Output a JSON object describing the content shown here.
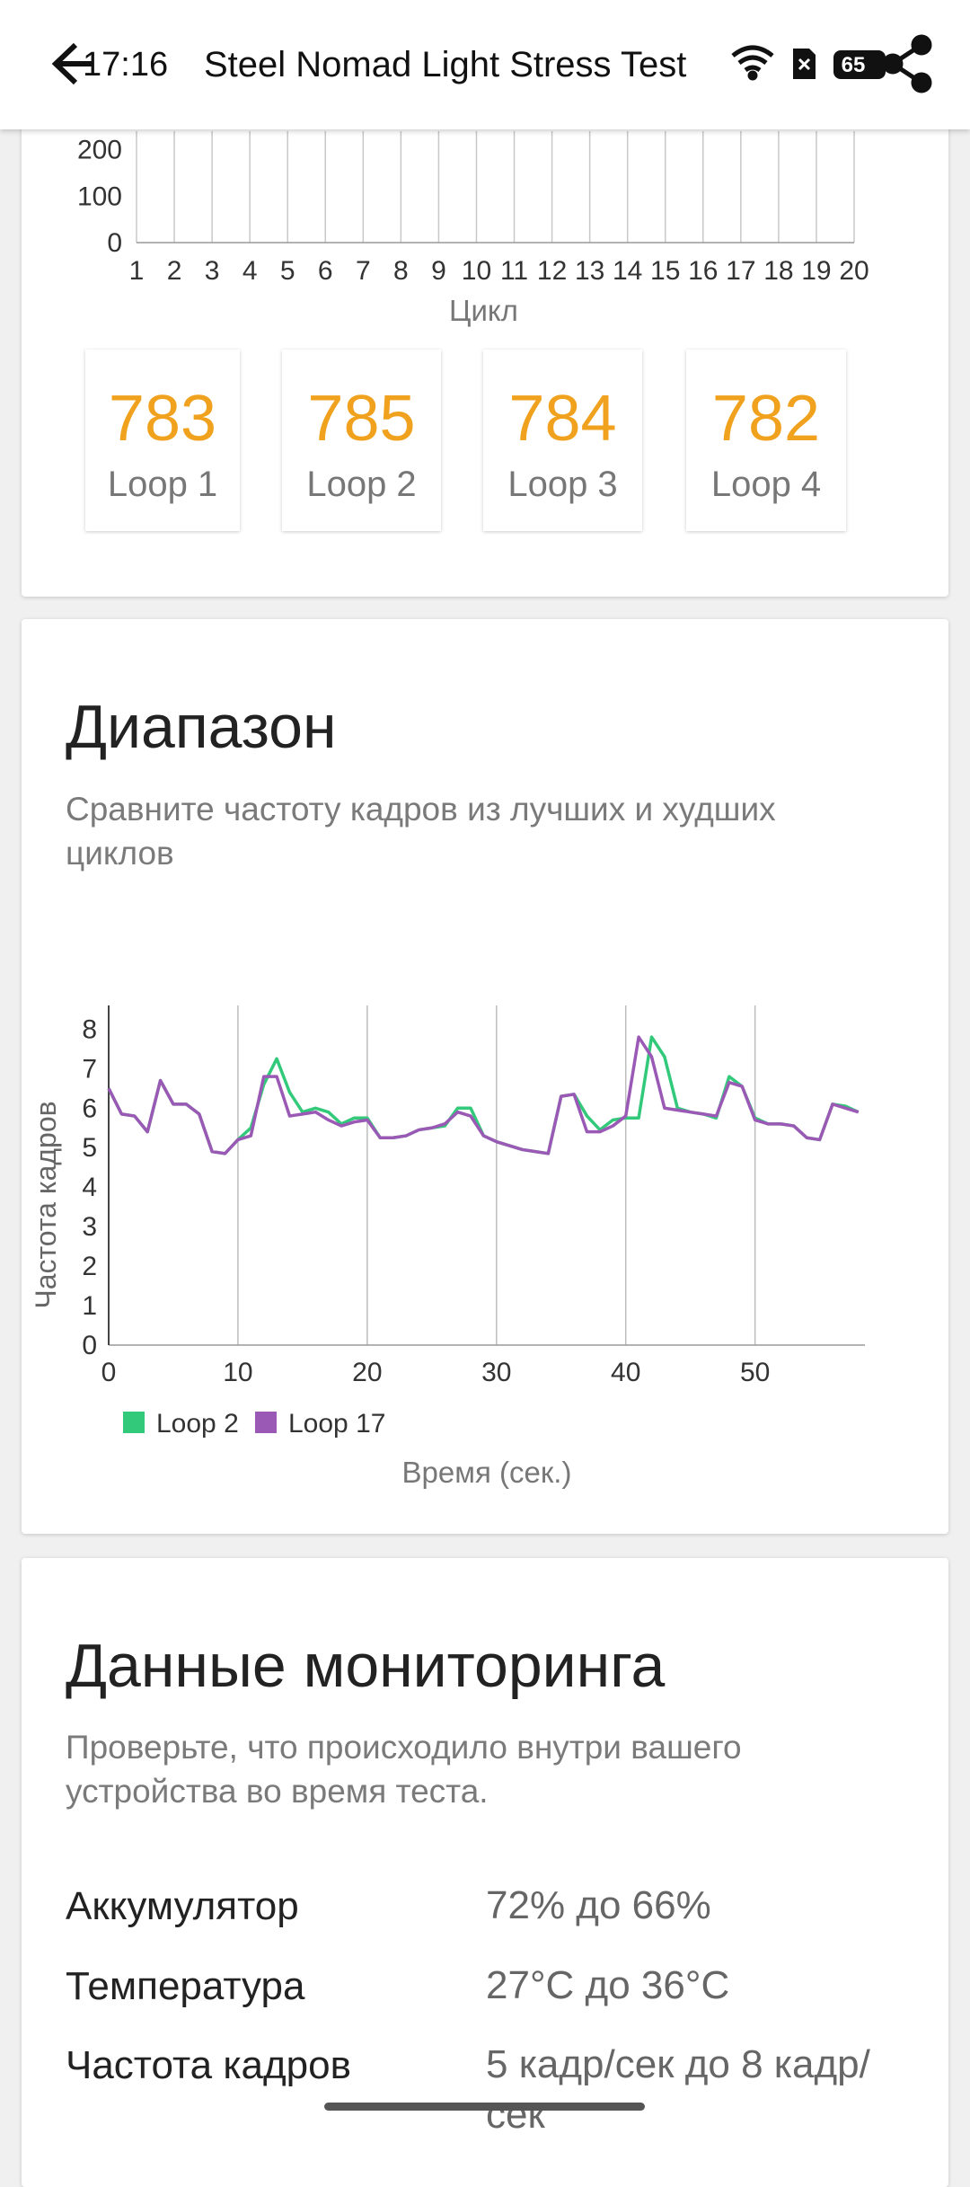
{
  "status_bar": {
    "time": "17:16",
    "battery": "65"
  },
  "header": {
    "title": "Steel Nomad Light Stress Test"
  },
  "chart_data": [
    {
      "type": "line",
      "x_label": "Цикл",
      "xlim": [
        1,
        20
      ],
      "xticks": [
        1,
        2,
        3,
        4,
        5,
        6,
        7,
        8,
        9,
        10,
        11,
        12,
        13,
        14,
        15,
        16,
        17,
        18,
        19,
        20
      ],
      "ylim": [
        0,
        240
      ],
      "yticks": [
        0,
        100,
        200
      ],
      "grid": true,
      "series": []
    },
    {
      "type": "line",
      "y_label": "Частота кадров",
      "x_label": "Время (сек.)",
      "xlim": [
        0,
        58.5
      ],
      "xticks": [
        0,
        10,
        20,
        30,
        40,
        50
      ],
      "ylim": [
        0,
        8.6
      ],
      "yticks": [
        0,
        1,
        2,
        3,
        4,
        5,
        6,
        7,
        8
      ],
      "grid": true,
      "legend": "bottom-left",
      "x": [
        0,
        1,
        2,
        3,
        4,
        5,
        6,
        7,
        8,
        9,
        10,
        11,
        12,
        13,
        14,
        15,
        16,
        17,
        18,
        19,
        20,
        21,
        22,
        23,
        24,
        25,
        26,
        27,
        28,
        29,
        30,
        31,
        32,
        33,
        34,
        35,
        36,
        37,
        38,
        39,
        40,
        41,
        42,
        43,
        44,
        45,
        46,
        47,
        48,
        49,
        50,
        51,
        52,
        53,
        54,
        55,
        56,
        57,
        58
      ],
      "series": [
        {
          "name": "Loop 2",
          "color": "#33c97b",
          "values": [
            6.5,
            5.85,
            5.8,
            5.4,
            6.7,
            6.1,
            6.1,
            5.85,
            4.9,
            4.85,
            5.2,
            5.5,
            6.6,
            7.25,
            6.4,
            5.9,
            6.0,
            5.9,
            5.6,
            5.75,
            5.75,
            5.25,
            5.25,
            5.3,
            5.45,
            5.5,
            5.55,
            6.0,
            6.0,
            5.3,
            5.15,
            5.05,
            4.95,
            4.9,
            4.85,
            6.3,
            6.35,
            5.8,
            5.45,
            5.7,
            5.75,
            5.75,
            7.8,
            7.3,
            6.0,
            5.9,
            5.85,
            5.75,
            6.8,
            6.55,
            5.75,
            5.6,
            5.6,
            5.55,
            5.25,
            5.2,
            6.1,
            6.05,
            5.9
          ]
        },
        {
          "name": "Loop 17",
          "color": "#9b59b6",
          "values": [
            6.5,
            5.85,
            5.8,
            5.4,
            6.7,
            6.1,
            6.1,
            5.85,
            4.9,
            4.85,
            5.2,
            5.3,
            6.8,
            6.8,
            5.8,
            5.85,
            5.9,
            5.7,
            5.55,
            5.65,
            5.7,
            5.25,
            5.25,
            5.3,
            5.45,
            5.5,
            5.6,
            5.9,
            5.8,
            5.3,
            5.15,
            5.05,
            4.95,
            4.9,
            4.85,
            6.3,
            6.35,
            5.4,
            5.4,
            5.55,
            5.8,
            7.8,
            7.3,
            6.0,
            5.95,
            5.9,
            5.85,
            5.8,
            6.65,
            6.55,
            5.7,
            5.6,
            5.6,
            5.55,
            5.25,
            5.2,
            6.1,
            6.0,
            5.9
          ]
        }
      ]
    }
  ],
  "loop_cards": [
    {
      "score": 783,
      "label": "Loop 1"
    },
    {
      "score": 785,
      "label": "Loop 2"
    },
    {
      "score": 784,
      "label": "Loop 3"
    },
    {
      "score": 782,
      "label": "Loop 4"
    }
  ],
  "range_section": {
    "title": "Диапазон",
    "subtitle_lines": [
      "Сравните частоту кадров из лучших и худших",
      "циклов"
    ]
  },
  "monitoring": {
    "title": "Данные мониторинга",
    "subtitle_lines": [
      "Проверьте, что происходило внутри вашего",
      "устройства во время теста."
    ],
    "rows": [
      {
        "label": "Аккумулятор",
        "value": "72% до 66%"
      },
      {
        "label": "Температура",
        "value": "27°C до 36°C"
      },
      {
        "label": "Частота кадров",
        "value": "5 кадр/сек до 8 кадр/сек"
      }
    ]
  }
}
